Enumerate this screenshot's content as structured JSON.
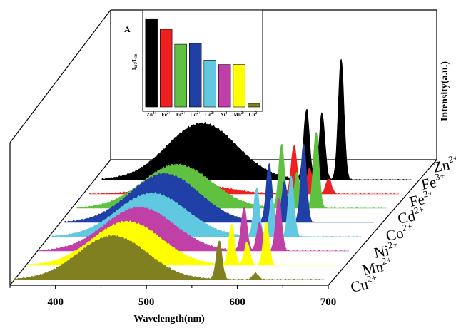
{
  "chart_data": [
    {
      "type": "line",
      "style": "3d-waterfall",
      "xlabel": "Wavelength(nm)",
      "ylabel": "Intensity(a.u.)",
      "xlim": [
        350,
        700
      ],
      "xticks": [
        400,
        500,
        600,
        700
      ],
      "grid": false,
      "series": [
        {
          "name": "Cu",
          "charge": "2+",
          "color": "#808020",
          "broad_center": 463,
          "broad_width": 38,
          "broad_height": 0.34,
          "peaks": [
            {
              "x": 580,
              "h": 0.3
            },
            {
              "x": 620,
              "h": 0.05
            }
          ]
        },
        {
          "name": "Mn",
          "charge": "2+",
          "color": "#ffff00",
          "broad_center": 465,
          "broad_width": 38,
          "broad_height": 0.34,
          "peaks": [
            {
              "x": 580,
              "h": 0.32
            },
            {
              "x": 597,
              "h": 0.18
            },
            {
              "x": 618,
              "h": 0.34
            }
          ]
        },
        {
          "name": "Ni",
          "charge": "2+",
          "color": "#c040a8",
          "broad_center": 465,
          "broad_width": 38,
          "broad_height": 0.34,
          "peaks": [
            {
              "x": 580,
              "h": 0.34
            },
            {
              "x": 597,
              "h": 0.22
            },
            {
              "x": 618,
              "h": 0.42
            }
          ]
        },
        {
          "name": "Co",
          "charge": "2+",
          "color": "#60c8e0",
          "broad_center": 465,
          "broad_width": 38,
          "broad_height": 0.34,
          "peaks": [
            {
              "x": 580,
              "h": 0.38
            },
            {
              "x": 597,
              "h": 0.3
            },
            {
              "x": 618,
              "h": 0.48
            }
          ]
        },
        {
          "name": "Cd",
          "charge": "2+",
          "color": "#2040a8",
          "broad_center": 465,
          "broad_width": 38,
          "broad_height": 0.38,
          "peaks": [
            {
              "x": 580,
              "h": 0.46
            },
            {
              "x": 597,
              "h": 0.32
            },
            {
              "x": 618,
              "h": 0.62
            }
          ]
        },
        {
          "name": "Fe",
          "charge": "2+",
          "color": "#60c040",
          "broad_center": 465,
          "broad_width": 38,
          "broad_height": 0.34,
          "peaks": [
            {
              "x": 580,
              "h": 0.5
            },
            {
              "x": 597,
              "h": 0.28
            },
            {
              "x": 618,
              "h": 0.6
            }
          ]
        },
        {
          "name": "Fe",
          "charge": "3+",
          "color": "#ee2020",
          "broad_center": 465,
          "broad_width": 38,
          "broad_height": 0.08,
          "peaks": [
            {
              "x": 580,
              "h": 0.38
            },
            {
              "x": 597,
              "h": 0.2
            },
            {
              "x": 618,
              "h": 0.12
            }
          ]
        },
        {
          "name": "Zn",
          "charge": "2+",
          "color": "#000000",
          "broad_center": 465,
          "broad_width": 38,
          "broad_height": 0.44,
          "peaks": [
            {
              "x": 580,
              "h": 0.55
            },
            {
              "x": 597,
              "h": 0.52
            },
            {
              "x": 618,
              "h": 0.95
            }
          ]
        }
      ]
    },
    {
      "type": "bar",
      "panel_label": "A",
      "ylabel": "I617/I430",
      "categories": [
        {
          "name": "Zn",
          "charge": "2+"
        },
        {
          "name": "Fe",
          "charge": "2+"
        },
        {
          "name": "Fe",
          "charge": "2+"
        },
        {
          "name": "Cd",
          "charge": "2+"
        },
        {
          "name": "Co",
          "charge": "2+"
        },
        {
          "name": "Ni",
          "charge": "2+"
        },
        {
          "name": "Mn",
          "charge": "2+"
        },
        {
          "name": "Cu",
          "charge": "2+"
        }
      ],
      "values": [
        1.0,
        0.88,
        0.71,
        0.72,
        0.53,
        0.48,
        0.48,
        0.04
      ],
      "colors": [
        "#000000",
        "#ee2020",
        "#60c040",
        "#2040a8",
        "#60c8e0",
        "#c040a8",
        "#ffff00",
        "#808020"
      ],
      "ylim": [
        0,
        1.05
      ]
    }
  ]
}
